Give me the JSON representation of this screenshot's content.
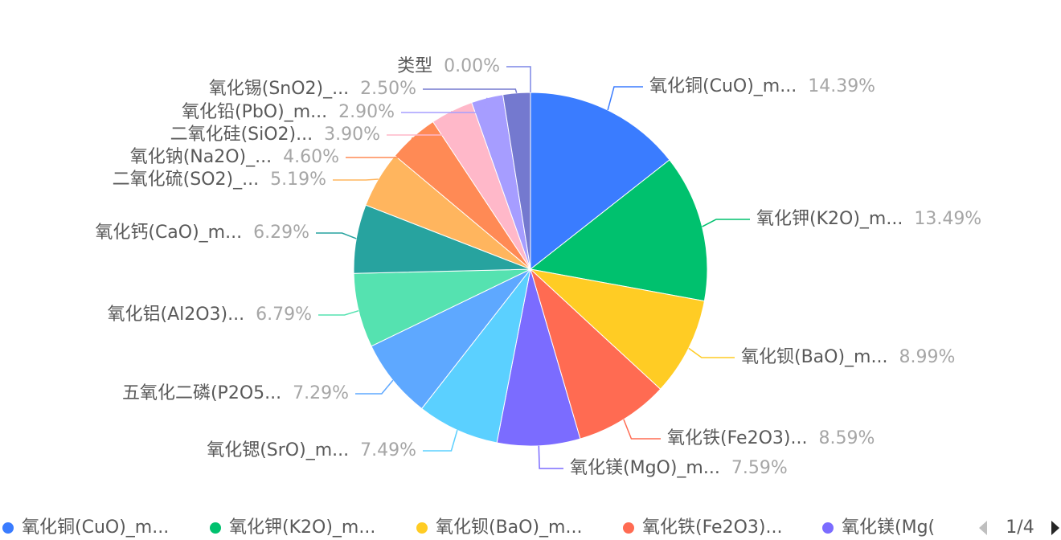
{
  "chart_data": {
    "type": "pie",
    "slices": [
      {
        "label": "氧化铜(CuO)_m...",
        "value": 14.39,
        "pct_label": "14.39%",
        "color": "#3a7cff"
      },
      {
        "label": "氧化钾(K2O)_m...",
        "value": 13.49,
        "pct_label": "13.49%",
        "color": "#00c16e"
      },
      {
        "label": "氧化钡(BaO)_m...",
        "value": 8.99,
        "pct_label": "8.99%",
        "color": "#ffcc24"
      },
      {
        "label": "氧化铁(Fe2O3)...",
        "value": 8.59,
        "pct_label": "8.59%",
        "color": "#ff6b52"
      },
      {
        "label": "氧化镁(MgO)_m...",
        "value": 7.59,
        "pct_label": "7.59%",
        "color": "#7b6cff"
      },
      {
        "label": "氧化锶(SrO)_m...",
        "value": 7.49,
        "pct_label": "7.49%",
        "color": "#5bd0ff"
      },
      {
        "label": "五氧化二磷(P2O5...",
        "value": 7.29,
        "pct_label": "7.29%",
        "color": "#5ea8ff"
      },
      {
        "label": "氧化铝(Al2O3)...",
        "value": 6.79,
        "pct_label": "6.79%",
        "color": "#55e2b0"
      },
      {
        "label": "氧化钙(CaO)_m...",
        "value": 6.29,
        "pct_label": "6.29%",
        "color": "#27a39f"
      },
      {
        "label": "二氧化硫(SO2)_...",
        "value": 5.19,
        "pct_label": "5.19%",
        "color": "#ffb55e"
      },
      {
        "label": "氧化钠(Na2O)_...",
        "value": 4.6,
        "pct_label": "4.60%",
        "color": "#ff8a55"
      },
      {
        "label": "二氧化硅(SiO2)...",
        "value": 3.9,
        "pct_label": "3.90%",
        "color": "#ffb8c9"
      },
      {
        "label": "氧化铅(PbO)_m...",
        "value": 2.9,
        "pct_label": "2.90%",
        "color": "#a69dff"
      },
      {
        "label": "氧化锡(SnO2)_...",
        "value": 2.5,
        "pct_label": "2.50%",
        "color": "#7479cf"
      },
      {
        "label": "类型",
        "value": 0.0,
        "pct_label": "0.00%",
        "color": "#7b86e6"
      }
    ],
    "legend": {
      "position": "bottom",
      "items": [
        "氧化铜(CuO)_m...",
        "氧化钾(K2O)_m...",
        "氧化钡(BaO)_m...",
        "氧化铁(Fe2O3)...",
        "氧化镁(Mg("
      ],
      "pager": "1/4"
    }
  }
}
